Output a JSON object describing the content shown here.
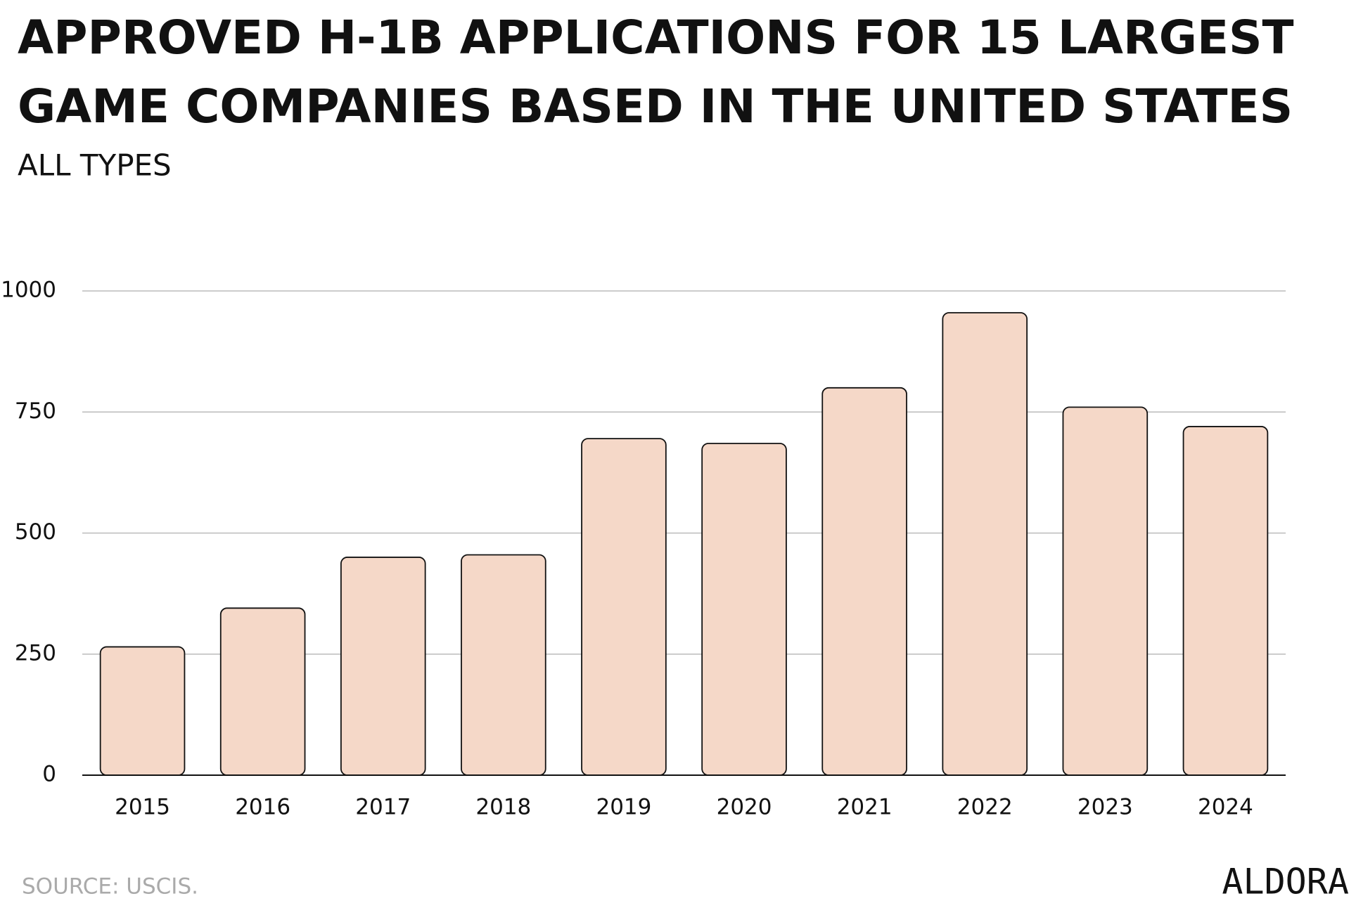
{
  "chart_data": {
    "type": "bar",
    "title": [
      "APPROVED H-1B APPLICATIONS FOR 15 LARGEST",
      "GAME COMPANIES BASED IN THE UNITED STATES"
    ],
    "subtitle": "ALL TYPES",
    "categories": [
      "2015",
      "2016",
      "2017",
      "2018",
      "2019",
      "2020",
      "2021",
      "2022",
      "2023",
      "2024"
    ],
    "values": [
      265,
      345,
      450,
      455,
      695,
      685,
      800,
      955,
      760,
      720
    ],
    "color": "#f5d8c8",
    "ylim": [
      0,
      1000
    ],
    "yticks": [
      0,
      250,
      500,
      750,
      1000
    ],
    "grid": true,
    "source": "SOURCE: USCIS.",
    "logo": "ALDORA"
  }
}
